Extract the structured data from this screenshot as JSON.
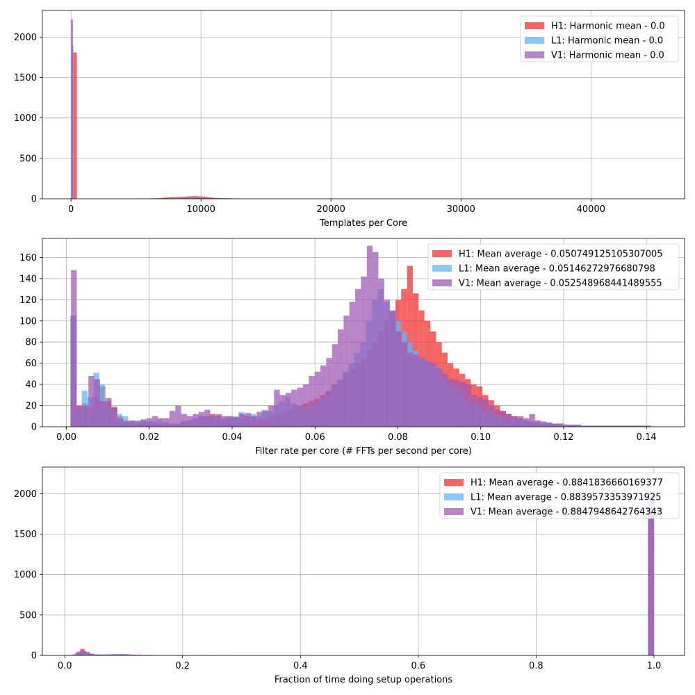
{
  "chart_data": [
    {
      "type": "bar",
      "xlabel": "Templates per Core",
      "xlim": [
        -2200,
        47200
      ],
      "ylim": [
        0,
        2330
      ],
      "xticks": [
        0,
        10000,
        20000,
        30000,
        40000
      ],
      "xtick_labels": [
        "0",
        "10000",
        "20000",
        "30000",
        "40000"
      ],
      "yticks": [
        0,
        500,
        1000,
        1500,
        2000
      ],
      "ytick_labels": [
        "0",
        "500",
        "1000",
        "1500",
        "2000"
      ],
      "grid": true,
      "legend_position": "top-right",
      "series": [
        {
          "name": "H1: Harmonic mean  - 0.0",
          "color": "#f03232",
          "bins": [
            [
              100,
              450,
              1810
            ],
            [
              5200,
              5500,
              3
            ],
            [
              5500,
              5800,
              2
            ],
            [
              5800,
              6100,
              4
            ],
            [
              6100,
              6400,
              5
            ],
            [
              6400,
              6700,
              6
            ],
            [
              6700,
              7000,
              9
            ],
            [
              7000,
              7300,
              14
            ],
            [
              7300,
              7600,
              18
            ],
            [
              7600,
              7900,
              20
            ],
            [
              7900,
              8200,
              22
            ],
            [
              8200,
              8500,
              24
            ],
            [
              8500,
              8800,
              26
            ],
            [
              8800,
              9100,
              30
            ],
            [
              9100,
              9400,
              32
            ],
            [
              9400,
              9700,
              34
            ],
            [
              9700,
              10000,
              30
            ],
            [
              10000,
              10300,
              27
            ],
            [
              10300,
              10600,
              22
            ],
            [
              10600,
              10900,
              18
            ],
            [
              10900,
              11200,
              12
            ],
            [
              11200,
              11500,
              10
            ],
            [
              11500,
              11800,
              9
            ],
            [
              11800,
              12100,
              8
            ],
            [
              12100,
              12400,
              6
            ],
            [
              12400,
              12700,
              4
            ]
          ]
        },
        {
          "name": "L1: Harmonic mean  - 0.0",
          "color": "#64b4f5",
          "bins": [
            [
              50,
              200,
              1900
            ],
            [
              8000,
              8500,
              10
            ],
            [
              8500,
              9000,
              14
            ],
            [
              9000,
              9500,
              16
            ],
            [
              9500,
              10000,
              15
            ],
            [
              10000,
              10500,
              10
            ]
          ]
        },
        {
          "name": "V1: Harmonic mean  - 0.0",
          "color": "#a05ab4",
          "bins": [
            [
              0,
              150,
              2220
            ],
            [
              8500,
              9000,
              12
            ],
            [
              9000,
              9500,
              14
            ],
            [
              9500,
              10000,
              14
            ],
            [
              10000,
              10500,
              10
            ],
            [
              10500,
              11000,
              6
            ]
          ]
        }
      ]
    },
    {
      "type": "bar",
      "xlabel": "Filter rate per core (# FFTs per second per core)",
      "xlim": [
        -0.0058,
        0.1492
      ],
      "ylim": [
        0,
        178
      ],
      "xticks": [
        0.0,
        0.02,
        0.04,
        0.06,
        0.08,
        0.1,
        0.12,
        0.14
      ],
      "xtick_labels": [
        "0.00",
        "0.02",
        "0.04",
        "0.06",
        "0.08",
        "0.10",
        "0.12",
        "0.14"
      ],
      "yticks": [
        0,
        20,
        40,
        60,
        80,
        100,
        120,
        140,
        160
      ],
      "ytick_labels": [
        "0",
        "20",
        "40",
        "60",
        "80",
        "100",
        "120",
        "140",
        "160"
      ],
      "grid": true,
      "legend_position": "top-right",
      "series": [
        {
          "name": "H1: Mean average - 0.050749125105307005",
          "color": "#f03232",
          "x_start": 0.001,
          "bin_width": 0.0014,
          "values": [
            105,
            20,
            22,
            18,
            28,
            38,
            24,
            18,
            10,
            6,
            4,
            3,
            4,
            5,
            4,
            3,
            4,
            3,
            2,
            5,
            6,
            8,
            9,
            10,
            12,
            10,
            8,
            10,
            9,
            8,
            10,
            9,
            8,
            7,
            10,
            12,
            14,
            16,
            18,
            20,
            22,
            24,
            26,
            30,
            34,
            40,
            44,
            50,
            54,
            60,
            64,
            72,
            80,
            90,
            100,
            110,
            120,
            130,
            152,
            126,
            110,
            100,
            90,
            80,
            70,
            60,
            55,
            50,
            45,
            40,
            38,
            30,
            25,
            20,
            15,
            12,
            10,
            8,
            6,
            5,
            4,
            3,
            3,
            2,
            2,
            2,
            1,
            1,
            1,
            1,
            1,
            1,
            1,
            1,
            1,
            1,
            1,
            1,
            1,
            1
          ]
        },
        {
          "name": "L1: Mean average - 0.05146272976680798",
          "color": "#64b4f5",
          "x_start": 0.0009,
          "bin_width": 0.0014,
          "values": [
            104,
            18,
            34,
            28,
            51,
            40,
            20,
            15,
            12,
            10,
            5,
            6,
            6,
            5,
            5,
            6,
            4,
            3,
            3,
            5,
            5,
            8,
            10,
            10,
            10,
            9,
            8,
            10,
            10,
            14,
            10,
            12,
            10,
            16,
            15,
            20,
            24,
            28,
            22,
            20,
            18,
            20,
            22,
            25,
            30,
            38,
            45,
            52,
            60,
            70,
            80,
            100,
            120,
            130,
            118,
            110,
            100,
            90,
            80,
            72,
            65,
            62,
            58,
            55,
            45,
            40,
            38,
            33,
            25,
            22,
            20,
            15,
            14,
            12,
            10,
            8,
            8,
            7,
            6,
            5,
            5,
            4,
            4,
            3,
            3,
            2,
            2,
            2,
            1,
            1,
            1,
            1,
            1,
            1,
            1,
            1,
            1,
            1,
            1,
            1
          ]
        },
        {
          "name": "V1: Mean average - 0.052548968441489555",
          "color": "#a05ab4",
          "x_start": 0.0011,
          "bin_width": 0.0014,
          "values": [
            148,
            20,
            20,
            48,
            45,
            24,
            27,
            19,
            8,
            5,
            6,
            5,
            7,
            8,
            10,
            8,
            8,
            15,
            20,
            12,
            10,
            12,
            14,
            16,
            10,
            12,
            10,
            9,
            9,
            12,
            13,
            10,
            14,
            15,
            20,
            35,
            30,
            32,
            35,
            37,
            40,
            48,
            52,
            58,
            65,
            78,
            92,
            105,
            118,
            130,
            142,
            171,
            165,
            140,
            120,
            109,
            90,
            80,
            70,
            68,
            65,
            62,
            60,
            55,
            50,
            45,
            44,
            42,
            40,
            30,
            28,
            26,
            20,
            16,
            15,
            12,
            10,
            10,
            8,
            12,
            6,
            5,
            4,
            3,
            3,
            2,
            2,
            2,
            1,
            1,
            1,
            1,
            1,
            1,
            1,
            1,
            1,
            1,
            1,
            1
          ]
        }
      ]
    },
    {
      "type": "bar",
      "xlabel": "Fraction of time doing setup operations",
      "xlim": [
        -0.038,
        1.052
      ],
      "ylim": [
        0,
        2330
      ],
      "xticks": [
        0.0,
        0.2,
        0.4,
        0.6,
        0.8,
        1.0
      ],
      "xtick_labels": [
        "0.0",
        "0.2",
        "0.4",
        "0.6",
        "0.8",
        "1.0"
      ],
      "yticks": [
        0,
        500,
        1000,
        1500,
        2000
      ],
      "ytick_labels": [
        "0",
        "500",
        "1000",
        "1500",
        "2000"
      ],
      "grid": true,
      "legend_position": "top-right",
      "series": [
        {
          "name": "H1: Mean average - 0.8841836660169377",
          "color": "#f03232",
          "bins": [
            [
              0.01,
              0.018,
              6
            ],
            [
              0.018,
              0.026,
              30
            ],
            [
              0.026,
              0.034,
              80
            ],
            [
              0.034,
              0.042,
              45
            ],
            [
              0.042,
              0.05,
              20
            ],
            [
              0.05,
              0.06,
              12
            ],
            [
              0.06,
              0.07,
              10
            ],
            [
              0.07,
              0.08,
              12
            ],
            [
              0.08,
              0.09,
              14
            ],
            [
              0.09,
              0.1,
              16
            ],
            [
              0.1,
              0.11,
              14
            ],
            [
              0.11,
              0.12,
              10
            ],
            [
              0.12,
              0.13,
              8
            ],
            [
              0.13,
              0.15,
              5
            ],
            [
              0.15,
              0.17,
              3
            ],
            [
              0.17,
              0.19,
              2
            ],
            [
              0.22,
              0.24,
              4
            ],
            [
              0.26,
              0.28,
              3
            ],
            [
              0.99,
              1.0,
              1900
            ]
          ]
        },
        {
          "name": "L1: Mean average - 0.8839573353971925",
          "color": "#64b4f5",
          "bins": [
            [
              0.008,
              0.016,
              5
            ],
            [
              0.016,
              0.024,
              25
            ],
            [
              0.024,
              0.032,
              50
            ],
            [
              0.032,
              0.04,
              40
            ],
            [
              0.04,
              0.05,
              18
            ],
            [
              0.05,
              0.06,
              12
            ],
            [
              0.06,
              0.07,
              10
            ],
            [
              0.07,
              0.08,
              10
            ],
            [
              0.08,
              0.09,
              12
            ],
            [
              0.09,
              0.1,
              10
            ],
            [
              0.1,
              0.12,
              8
            ],
            [
              0.12,
              0.15,
              5
            ],
            [
              0.15,
              0.2,
              3
            ],
            [
              0.23,
              0.25,
              3
            ],
            [
              0.99,
              1.0,
              1920
            ]
          ]
        },
        {
          "name": "V1: Mean average - 0.8847948642764343",
          "color": "#a05ab4",
          "bins": [
            [
              0.012,
              0.02,
              8
            ],
            [
              0.02,
              0.028,
              45
            ],
            [
              0.028,
              0.036,
              55
            ],
            [
              0.036,
              0.044,
              30
            ],
            [
              0.044,
              0.05,
              16
            ],
            [
              0.05,
              0.06,
              12
            ],
            [
              0.06,
              0.07,
              10
            ],
            [
              0.07,
              0.08,
              12
            ],
            [
              0.08,
              0.09,
              12
            ],
            [
              0.09,
              0.1,
              10
            ],
            [
              0.1,
              0.12,
              8
            ],
            [
              0.12,
              0.15,
              5
            ],
            [
              0.15,
              0.2,
              3
            ],
            [
              0.99,
              1.0,
              2010
            ]
          ]
        }
      ]
    }
  ]
}
